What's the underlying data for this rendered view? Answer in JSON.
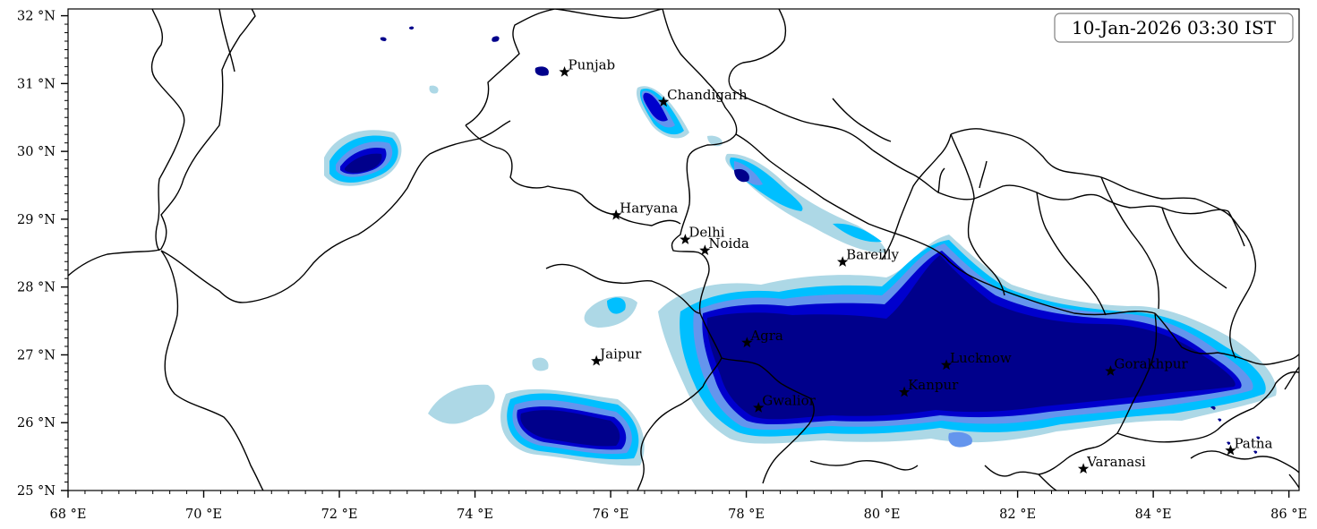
{
  "timestamp": "10-Jan-2026 03:30 IST",
  "map": {
    "lon_range": [
      68,
      86.15
    ],
    "lat_range": [
      25,
      32.1
    ],
    "x_ticks": [
      {
        "value": 68,
        "label": "68 °E"
      },
      {
        "value": 70,
        "label": "70 °E"
      },
      {
        "value": 72,
        "label": "72 °E"
      },
      {
        "value": 74,
        "label": "74 °E"
      },
      {
        "value": 76,
        "label": "76 °E"
      },
      {
        "value": 78,
        "label": "78 °E"
      },
      {
        "value": 80,
        "label": "80 °E"
      },
      {
        "value": 82,
        "label": "82 °E"
      },
      {
        "value": 84,
        "label": "84 °E"
      },
      {
        "value": 86,
        "label": "86 °E"
      }
    ],
    "y_ticks": [
      {
        "value": 25,
        "label": "25 °N"
      },
      {
        "value": 26,
        "label": "26 °N"
      },
      {
        "value": 27,
        "label": "27 °N"
      },
      {
        "value": 28,
        "label": "28 °N"
      },
      {
        "value": 29,
        "label": "29 °N"
      },
      {
        "value": 30,
        "label": "30 °N"
      },
      {
        "value": 31,
        "label": "31 °N"
      },
      {
        "value": 32,
        "label": "32 °N"
      }
    ],
    "cities": [
      {
        "name": "Punjab",
        "lon": 75.32,
        "lat": 31.17
      },
      {
        "name": "Chandigarh",
        "lon": 76.78,
        "lat": 30.73
      },
      {
        "name": "Haryana",
        "lon": 76.08,
        "lat": 29.06
      },
      {
        "name": "Delhi",
        "lon": 77.1,
        "lat": 28.7
      },
      {
        "name": "Noida",
        "lon": 77.39,
        "lat": 28.54
      },
      {
        "name": "Bareilly",
        "lon": 79.42,
        "lat": 28.37
      },
      {
        "name": "Agra",
        "lon": 78.01,
        "lat": 27.18
      },
      {
        "name": "Jaipur",
        "lon": 75.79,
        "lat": 26.91
      },
      {
        "name": "Gwalior",
        "lon": 78.18,
        "lat": 26.22
      },
      {
        "name": "Lucknow",
        "lon": 80.95,
        "lat": 26.85
      },
      {
        "name": "Kanpur",
        "lon": 80.33,
        "lat": 26.45
      },
      {
        "name": "Gorakhpur",
        "lon": 83.37,
        "lat": 26.76
      },
      {
        "name": "Varanasi",
        "lon": 82.97,
        "lat": 25.32
      },
      {
        "name": "Patna",
        "lon": 85.14,
        "lat": 25.59
      }
    ],
    "level_colors": [
      "#add8e6",
      "#00bfff",
      "#6495ed",
      "#0000cd",
      "#00008b"
    ]
  }
}
